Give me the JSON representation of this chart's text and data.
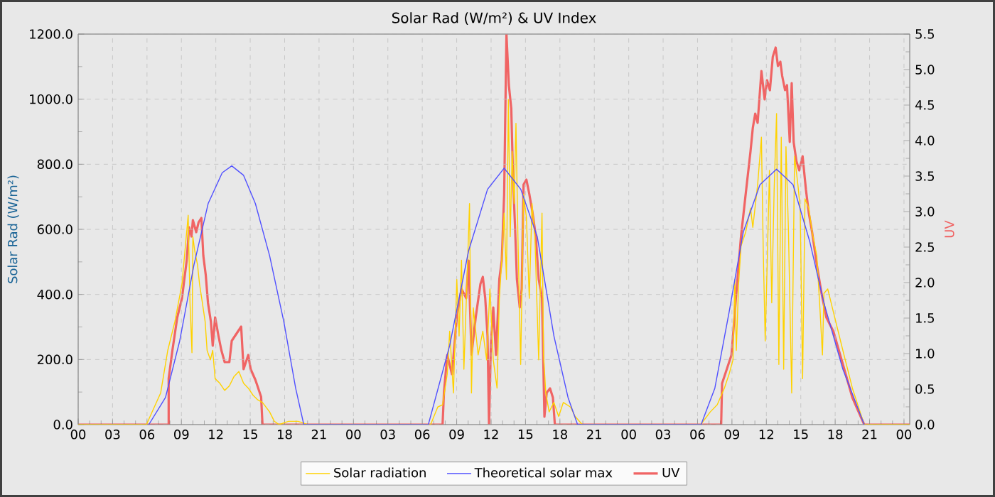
{
  "chart_data": {
    "type": "line",
    "title": "Solar Rad (W/m²) &  UV Index",
    "ylabel": "Solar Rad (W/m²)",
    "y2label": "UV",
    "xlim": [
      0,
      72.5
    ],
    "xticks": [
      {
        "value": 0,
        "label": "00"
      },
      {
        "value": 3,
        "label": "03"
      },
      {
        "value": 6,
        "label": "06"
      },
      {
        "value": 9,
        "label": "09"
      },
      {
        "value": 12,
        "label": "12"
      },
      {
        "value": 15,
        "label": "15"
      },
      {
        "value": 18,
        "label": "18"
      },
      {
        "value": 21,
        "label": "21"
      },
      {
        "value": 24,
        "label": "00"
      },
      {
        "value": 27,
        "label": "03"
      },
      {
        "value": 30,
        "label": "06"
      },
      {
        "value": 33,
        "label": "09"
      },
      {
        "value": 36,
        "label": "12"
      },
      {
        "value": 39,
        "label": "15"
      },
      {
        "value": 42,
        "label": "18"
      },
      {
        "value": 45,
        "label": "21"
      },
      {
        "value": 48,
        "label": "00"
      },
      {
        "value": 51,
        "label": "03"
      },
      {
        "value": 54,
        "label": "06"
      },
      {
        "value": 57,
        "label": "09"
      },
      {
        "value": 60,
        "label": "12"
      },
      {
        "value": 63,
        "label": "15"
      },
      {
        "value": 66,
        "label": "18"
      },
      {
        "value": 69,
        "label": "21"
      },
      {
        "value": 72,
        "label": "00"
      }
    ],
    "ylim": [
      0,
      1200
    ],
    "yticks": [
      {
        "value": 0,
        "label": "0.0"
      },
      {
        "value": 200,
        "label": "200.0"
      },
      {
        "value": 400,
        "label": "400.0"
      },
      {
        "value": 600,
        "label": "600.0"
      },
      {
        "value": 800,
        "label": "800.0"
      },
      {
        "value": 1000,
        "label": "1000.0"
      },
      {
        "value": 1200,
        "label": "1200.0"
      }
    ],
    "y2lim": [
      0,
      5.5
    ],
    "y2ticks": [
      {
        "value": 0,
        "label": "0.0"
      },
      {
        "value": 0.5,
        "label": "0.5"
      },
      {
        "value": 1,
        "label": "1.0"
      },
      {
        "value": 1.5,
        "label": "1.5"
      },
      {
        "value": 2,
        "label": "2.0"
      },
      {
        "value": 2.5,
        "label": "2.5"
      },
      {
        "value": 3,
        "label": "3.0"
      },
      {
        "value": 3.5,
        "label": "3.5"
      },
      {
        "value": 4,
        "label": "4.0"
      },
      {
        "value": 4.5,
        "label": "4.5"
      },
      {
        "value": 5,
        "label": "5.0"
      },
      {
        "value": 5.5,
        "label": "5.5"
      }
    ],
    "grid": true,
    "legend": "bottom",
    "series": [
      {
        "name": "Solar radiation",
        "color": "#ffd200",
        "x": [
          0,
          5.95,
          7.19,
          7.81,
          8.43,
          9.05,
          9.59,
          9.75,
          9.92,
          10.0,
          10.16,
          10.41,
          10.58,
          10.83,
          11.07,
          11.24,
          11.53,
          11.73,
          11.94,
          12.35,
          12.77,
          13.18,
          13.59,
          14.01,
          14.42,
          14.83,
          15.25,
          15.66,
          16.07,
          16.69,
          17.1,
          17.52,
          18.34,
          19.17,
          20.0,
          30.73,
          31.35,
          31.77,
          32.18,
          32.39,
          32.72,
          33.01,
          33.21,
          33.42,
          33.63,
          33.96,
          34.12,
          34.29,
          34.45,
          34.87,
          35.28,
          35.61,
          35.9,
          36.19,
          36.52,
          36.72,
          36.93,
          37.14,
          37.34,
          37.51,
          37.67,
          37.84,
          38.01,
          38.17,
          38.34,
          38.58,
          38.83,
          39.08,
          39.33,
          39.57,
          39.82,
          40.15,
          40.44,
          40.57,
          40.77,
          41.06,
          41.47,
          41.89,
          42.3,
          42.92,
          43.33,
          43.95,
          54.28,
          55.11,
          55.72,
          56.34,
          56.76,
          57.09,
          57.25,
          57.38,
          57.58,
          57.79,
          58.2,
          58.62,
          58.82,
          59.24,
          59.57,
          59.73,
          59.9,
          60.06,
          60.27,
          60.47,
          60.68,
          60.89,
          61.09,
          61.3,
          61.51,
          61.71,
          61.92,
          62.21,
          62.46,
          62.75,
          62.95,
          63.16,
          63.37,
          63.7,
          63.99,
          64.4,
          64.69,
          64.89,
          65.02,
          65.35,
          65.85,
          66.67,
          67.5,
          68.53,
          72.5
        ],
        "values": [
          0,
          0,
          97,
          228,
          316,
          432,
          643,
          374,
          221,
          577,
          534,
          490,
          432,
          374,
          316,
          228,
          199,
          228,
          141,
          127,
          105,
          119,
          148,
          163,
          127,
          112,
          90,
          76,
          68,
          39,
          10,
          0,
          10,
          10,
          0,
          0,
          54,
          61,
          156,
          287,
          97,
          446,
          272,
          505,
          170,
          505,
          679,
          97,
          359,
          214,
          287,
          199,
          417,
          199,
          112,
          388,
          505,
          650,
          446,
          999,
          577,
          839,
          679,
          926,
          577,
          185,
          708,
          636,
          388,
          679,
          577,
          199,
          650,
          214,
          97,
          39,
          68,
          25,
          68,
          54,
          25,
          0,
          0,
          39,
          61,
          112,
          156,
          199,
          446,
          228,
          432,
          548,
          592,
          665,
          606,
          737,
          883,
          534,
          257,
          476,
          781,
          374,
          723,
          956,
          185,
          883,
          170,
          854,
          606,
          97,
          825,
          737,
          665,
          141,
          694,
          665,
          592,
          519,
          345,
          214,
          403,
          417,
          345,
          228,
          112,
          0,
          0
        ]
      },
      {
        "name": "Theoretical solar max",
        "color": "#5050ff",
        "x": [
          6.16,
          7.61,
          8.85,
          10.09,
          11.33,
          12.56,
          13.39,
          14.42,
          15.45,
          16.69,
          17.93,
          18.96,
          19.67,
          30.53,
          32.39,
          34.04,
          35.69,
          37.14,
          38.59,
          40.03,
          41.48,
          42.71,
          43.54,
          54.31,
          55.51,
          56.75,
          57.99,
          59.44,
          60.89,
          62.33,
          63.78,
          65.02,
          66.67,
          68.53
        ],
        "values": [
          0,
          83,
          257,
          490,
          679,
          774,
          795,
          766,
          679,
          519,
          316,
          112,
          0,
          0,
          243,
          534,
          723,
          788,
          723,
          577,
          272,
          83,
          0,
          0,
          112,
          345,
          592,
          737,
          785,
          737,
          563,
          374,
          170,
          0
        ]
      },
      {
        "name": "UV",
        "color": "#f06464",
        "axis": "y2",
        "x": [
          0,
          7.89,
          7.89,
          8.22,
          8.64,
          9.05,
          9.46,
          9.67,
          9.88,
          10.0,
          10.29,
          10.5,
          10.74,
          10.91,
          11.12,
          11.32,
          11.57,
          11.73,
          11.94,
          12.23,
          12.48,
          12.77,
          13.18,
          13.39,
          13.8,
          14.21,
          14.42,
          14.83,
          15.04,
          15.45,
          15.66,
          15.95,
          16.07,
          31.77,
          31.89,
          32.18,
          32.59,
          33.01,
          33.42,
          33.83,
          34.04,
          34.29,
          34.66,
          35.07,
          35.28,
          35.49,
          35.69,
          35.82,
          35.98,
          36.19,
          36.43,
          36.72,
          36.93,
          37.14,
          37.34,
          37.55,
          37.76,
          37.92,
          38.09,
          38.25,
          38.5,
          38.67,
          38.83,
          39.08,
          39.33,
          39.62,
          39.9,
          40.15,
          40.44,
          40.65,
          40.85,
          41.14,
          41.39,
          41.56,
          56.06,
          56.14,
          56.55,
          56.96,
          57.38,
          57.79,
          58.2,
          58.62,
          58.82,
          59.03,
          59.24,
          59.57,
          59.85,
          60.06,
          60.31,
          60.56,
          60.81,
          61.01,
          61.22,
          61.38,
          61.63,
          61.8,
          62.04,
          62.21,
          62.38,
          62.62,
          62.87,
          63.16,
          63.45,
          63.7,
          63.99,
          64.4,
          64.81,
          65.23,
          65.85,
          66.67,
          67.5,
          68.53,
          72.5
        ],
        "values": [
          0,
          0,
          0.65,
          1.05,
          1.51,
          1.78,
          2.31,
          2.78,
          2.65,
          2.88,
          2.71,
          2.85,
          2.91,
          2.38,
          2.11,
          1.71,
          1.45,
          1.11,
          1.51,
          1.25,
          1.05,
          0.88,
          0.88,
          1.18,
          1.28,
          1.38,
          0.78,
          0.98,
          0.78,
          0.63,
          0.53,
          0.39,
          0,
          0,
          0.45,
          0.98,
          0.71,
          1.51,
          1.91,
          1.78,
          2.31,
          0.98,
          1.51,
          1.98,
          2.08,
          1.78,
          1.25,
          0,
          1.11,
          1.65,
          0.98,
          2.05,
          2.31,
          3.25,
          5.5,
          4.78,
          4.45,
          3.45,
          2.78,
          2.05,
          1.65,
          1.91,
          3.38,
          3.45,
          3.25,
          2.98,
          2.65,
          2.05,
          1.78,
          0.11,
          0.45,
          0.51,
          0.38,
          0,
          0,
          0.58,
          0.78,
          0.98,
          1.85,
          2.65,
          3.25,
          3.85,
          4.18,
          4.38,
          4.25,
          4.98,
          4.58,
          4.85,
          4.71,
          5.18,
          5.31,
          5.05,
          5.11,
          4.91,
          4.71,
          4.78,
          3.98,
          4.81,
          3.98,
          3.71,
          3.58,
          3.78,
          3.31,
          2.98,
          2.71,
          2.25,
          1.85,
          1.51,
          1.31,
          0.85,
          0.38,
          0,
          0
        ]
      }
    ]
  }
}
